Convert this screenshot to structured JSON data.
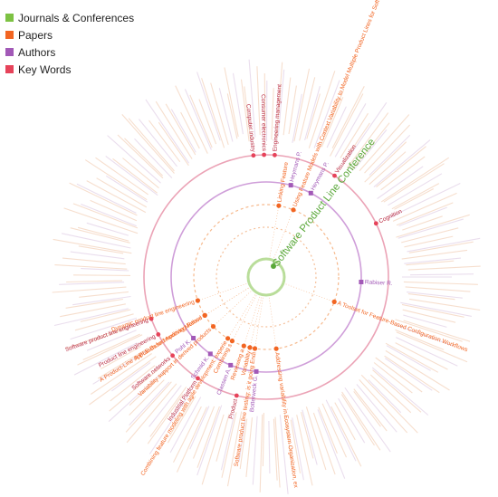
{
  "legend": [
    {
      "label": "Journals & Conferences",
      "color": "#7dc243"
    },
    {
      "label": "Papers",
      "color": "#f26522"
    },
    {
      "label": "Authors",
      "color": "#a259b7"
    },
    {
      "label": "Key Words",
      "color": "#e6435a"
    }
  ],
  "colors": {
    "journal": "#5aa83a",
    "paper": "#f26522",
    "author": "#a259b7",
    "keyword": "#e6435a",
    "faint": "#f0c4a6",
    "faint2": "#d9c3df"
  },
  "center_label": "Software Product Line Conference",
  "papers": [
    {
      "label": "Using Feature Models with Context Variability to Model Multiple Product Lines for Softwa",
      "angle": -68
    },
    {
      "label": "Linking Feature",
      "angle": -80
    },
    {
      "label": "A Toolset for Feature-Based Configuration Workflows",
      "angle": 20
    },
    {
      "label": "A PLE Based Auditing Method",
      "angle": 148
    },
    {
      "label": "Variability",
      "angle": 103
    },
    {
      "label": "Reviewing a",
      "angle": 108
    },
    {
      "label": "Combining s",
      "angle": 118
    },
    {
      "label": "Dynamic product line engineering",
      "angle": 161
    },
    {
      "label": "A Product-Line Approach for Improving Reuse",
      "angle": 148
    },
    {
      "label": "Variability support in derived products",
      "angle": 137
    },
    {
      "label": "Combining feature modeling with agile development: experie",
      "angle": 122
    },
    {
      "label": "Software product line testing: is it going Endi",
      "angle": 99
    },
    {
      "label": "Addressing variability in Ecosystem Organization, ex",
      "angle": 82
    }
  ],
  "authors": [
    {
      "label": "Heymans P.",
      "angle": -75
    },
    {
      "label": "Heymans P.",
      "angle": -62
    },
    {
      "label": "Rabiser R.",
      "angle": 3
    },
    {
      "label": "Classen A.",
      "angle": 112
    },
    {
      "label": "Schmid K.",
      "angle": 126
    },
    {
      "label": "Botterweck G.",
      "angle": 96
    },
    {
      "label": "Pohl K.",
      "angle": 140
    }
  ],
  "keywords": [
    {
      "label": "Computer industry",
      "angle": -96
    },
    {
      "label": "Consumer electronics",
      "angle": -91
    },
    {
      "label": "Engineering management",
      "angle": -86
    },
    {
      "label": "Visualization",
      "angle": -56
    },
    {
      "label": "Cognition",
      "angle": -26
    },
    {
      "label": "Industrial Platform",
      "angle": 124
    },
    {
      "label": "Product",
      "angle": 104
    },
    {
      "label": "Software product line engineering",
      "angle": 160
    },
    {
      "label": "Product line engineering",
      "angle": 152
    },
    {
      "label": "Software networks",
      "angle": 140
    }
  ]
}
